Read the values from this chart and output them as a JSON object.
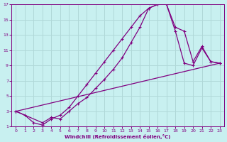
{
  "xlabel": "Windchill (Refroidissement éolien,°C)",
  "background_color": "#c8f0f0",
  "grid_color": "#b0d8d8",
  "line_color": "#800080",
  "xlim": [
    -0.5,
    23.5
  ],
  "ylim": [
    1,
    17
  ],
  "xticks": [
    0,
    1,
    2,
    3,
    4,
    5,
    6,
    7,
    8,
    9,
    10,
    11,
    12,
    13,
    14,
    15,
    16,
    17,
    18,
    19,
    20,
    21,
    22,
    23
  ],
  "yticks": [
    1,
    3,
    5,
    7,
    9,
    11,
    13,
    15,
    17
  ],
  "line1_x": [
    0,
    1,
    2,
    3,
    4,
    5,
    6,
    7,
    8,
    9,
    10,
    11,
    12,
    13,
    14,
    15,
    16,
    17,
    18,
    19,
    20,
    21,
    22,
    23
  ],
  "line1_y": [
    3.0,
    2.5,
    1.5,
    1.2,
    2.0,
    2.5,
    3.5,
    5.0,
    6.5,
    8.0,
    9.5,
    11.0,
    12.5,
    14.0,
    15.5,
    16.5,
    17.0,
    17.0,
    13.5,
    9.3,
    9.0,
    11.3,
    9.5,
    9.3
  ],
  "line2_x": [
    0,
    3,
    4,
    5,
    6,
    7,
    8,
    9,
    10,
    11,
    12,
    13,
    14,
    15,
    16,
    17,
    18,
    19,
    20,
    21,
    22,
    23
  ],
  "line2_y": [
    3.0,
    1.5,
    2.2,
    2.0,
    3.0,
    4.0,
    4.8,
    6.0,
    7.2,
    8.5,
    10.0,
    12.0,
    14.0,
    16.5,
    17.0,
    17.0,
    14.0,
    13.5,
    9.5,
    11.5,
    9.5,
    9.3
  ],
  "line3_x": [
    0,
    23
  ],
  "line3_y": [
    3.0,
    9.3
  ],
  "marker": "+"
}
